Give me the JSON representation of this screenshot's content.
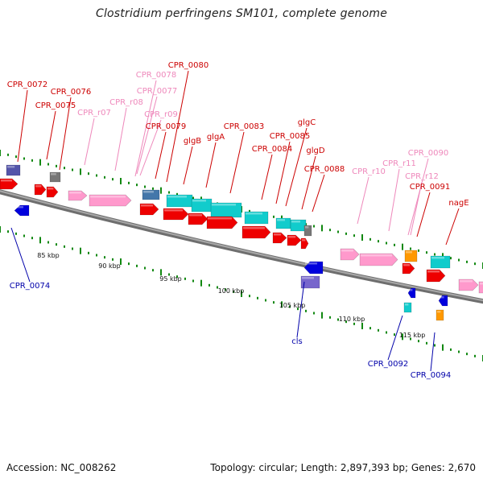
{
  "header": {
    "title": "Clostridium perfringens SM101, complete genome"
  },
  "footer": {
    "accession": "Accession: NC_008262",
    "summary": "Topology: circular; Length: 2,897,393 bp; Genes: 2,670"
  },
  "colors": {
    "cds": "#ee0000",
    "rrna": "#ff99cc",
    "gene_cyan": "#11cccc",
    "gene_steelblue": "#4477aa",
    "gene_purple": "#5555aa",
    "gene_lightpurple": "#7766cc",
    "gene_gray": "#777777",
    "gene_orange": "#ff9900",
    "reverse_cds": "#0000dd",
    "tick": "#118811",
    "backbone": "#888888",
    "label_forward": "#cc0000",
    "label_rrna": "#ee88bb",
    "label_reverse": "#0000aa"
  },
  "scale_labels": [
    "85 kbp",
    "90 kbp",
    "95 kbp",
    "100 kbp",
    "105 kbp",
    "110 kbp",
    "115 kbp"
  ],
  "gene_labels": [
    {
      "text": "CPR_0072",
      "kind": "forward"
    },
    {
      "text": "CPR_0076",
      "kind": "forward"
    },
    {
      "text": "CPR_0075",
      "kind": "forward"
    },
    {
      "text": "CPR_r07",
      "kind": "rrna"
    },
    {
      "text": "CPR_r08",
      "kind": "rrna"
    },
    {
      "text": "CPR_0078",
      "kind": "rrna"
    },
    {
      "text": "CPR_0077",
      "kind": "rrna"
    },
    {
      "text": "CPR_r09",
      "kind": "rrna"
    },
    {
      "text": "CPR_0080",
      "kind": "forward"
    },
    {
      "text": "CPR_0079",
      "kind": "forward"
    },
    {
      "text": "glgB",
      "kind": "forward"
    },
    {
      "text": "glgA",
      "kind": "forward"
    },
    {
      "text": "CPR_0083",
      "kind": "forward"
    },
    {
      "text": "CPR_0084",
      "kind": "forward"
    },
    {
      "text": "CPR_0085",
      "kind": "forward"
    },
    {
      "text": "glgC",
      "kind": "forward"
    },
    {
      "text": "glgD",
      "kind": "forward"
    },
    {
      "text": "CPR_0088",
      "kind": "forward"
    },
    {
      "text": "CPR_r10",
      "kind": "rrna"
    },
    {
      "text": "CPR_0090",
      "kind": "rrna"
    },
    {
      "text": "CPR_r11",
      "kind": "rrna"
    },
    {
      "text": "CPR_r12",
      "kind": "rrna"
    },
    {
      "text": "CPR_0091",
      "kind": "forward"
    },
    {
      "text": "nagE",
      "kind": "forward"
    },
    {
      "text": "CPR_0074",
      "kind": "reverse"
    },
    {
      "text": "cls",
      "kind": "reverse"
    },
    {
      "text": "CPR_0092",
      "kind": "reverse"
    },
    {
      "text": "CPR_0094",
      "kind": "reverse"
    }
  ]
}
